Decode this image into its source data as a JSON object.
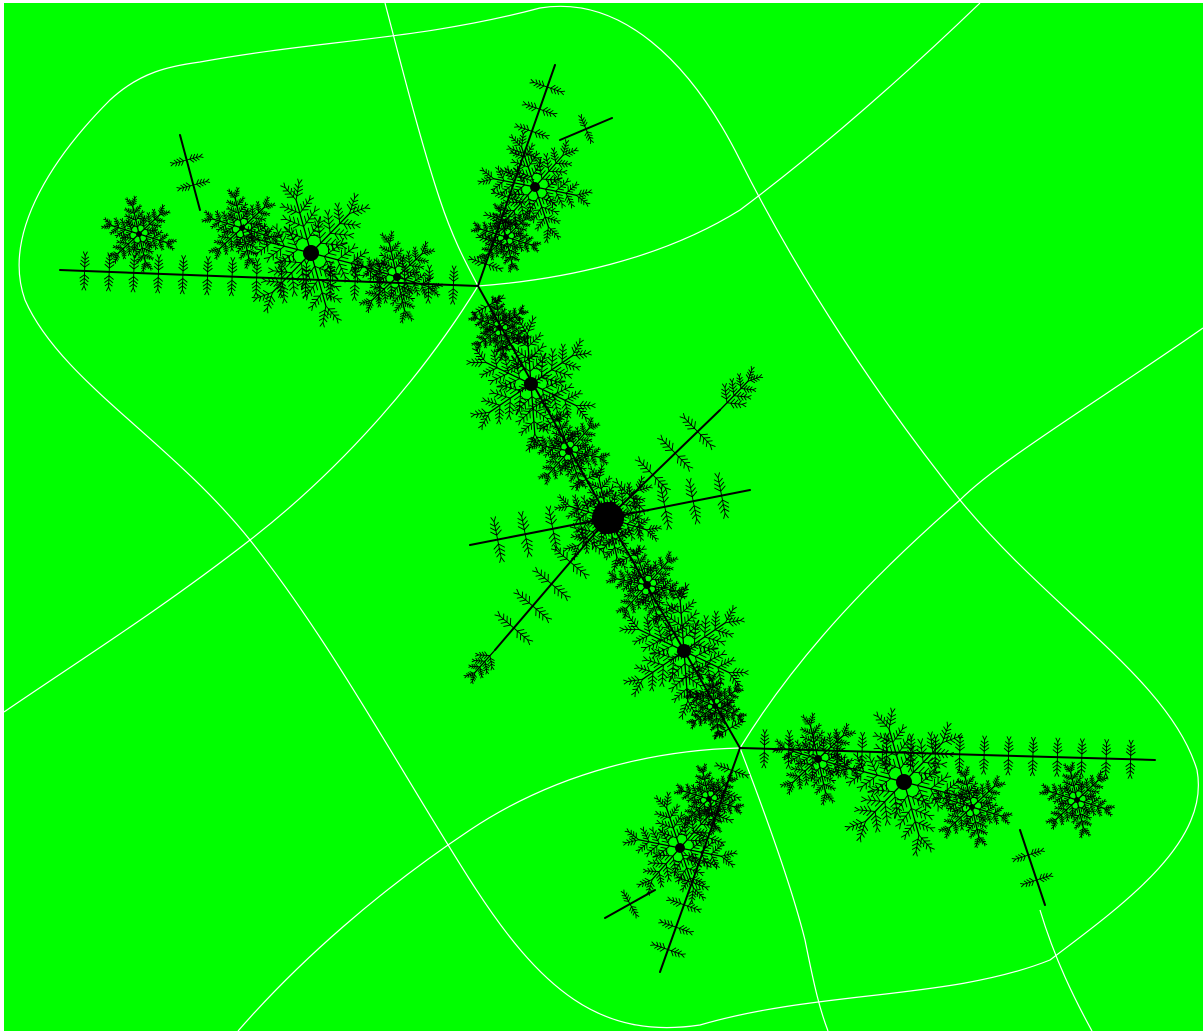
{
  "image": {
    "subject": "fractal-filled-julia-set-dendrite",
    "colors": {
      "background": "#00ff00",
      "frame": "#ffffff",
      "fractal": "#000000",
      "curves": "#ffffff"
    }
  }
}
